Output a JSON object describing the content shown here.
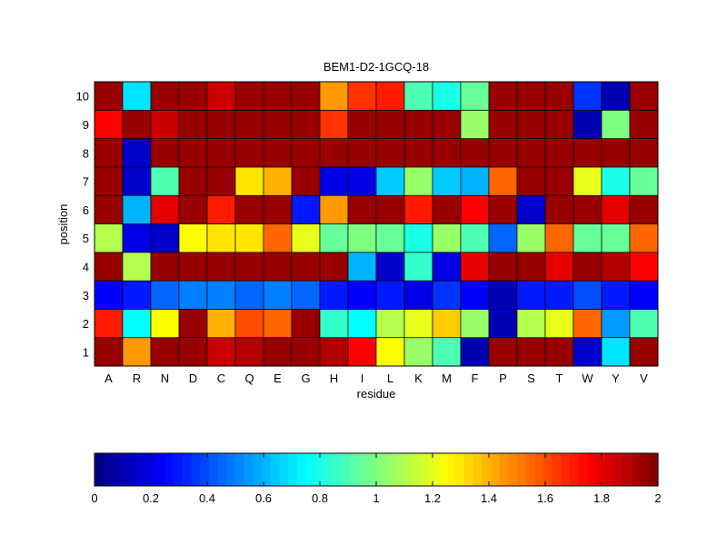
{
  "chart_data": [
    {
      "type": "heatmap",
      "title": "BEM1-D2-1GCQ-18",
      "xlabel": "residue",
      "ylabel": "position",
      "x_categories": [
        "A",
        "R",
        "N",
        "D",
        "C",
        "Q",
        "E",
        "G",
        "H",
        "I",
        "L",
        "K",
        "M",
        "F",
        "P",
        "S",
        "T",
        "W",
        "Y",
        "V"
      ],
      "y_categories": [
        "1",
        "2",
        "3",
        "4",
        "5",
        "6",
        "7",
        "8",
        "9",
        "10"
      ],
      "value_range": [
        0,
        2
      ],
      "colormap": "jet",
      "grid": true,
      "values": [
        [
          1.95,
          1.45,
          1.95,
          1.95,
          1.85,
          1.9,
          1.95,
          1.95,
          1.9,
          1.75,
          1.25,
          1.05,
          0.9,
          0.1,
          1.95,
          1.95,
          1.95,
          0.15,
          0.7,
          1.95
        ],
        [
          1.7,
          0.75,
          1.25,
          1.95,
          1.4,
          1.6,
          1.55,
          1.95,
          0.85,
          0.75,
          1.1,
          1.2,
          1.35,
          1.05,
          0.1,
          1.1,
          1.2,
          1.55,
          0.55,
          0.9
        ],
        [
          0.25,
          0.3,
          0.45,
          0.5,
          0.5,
          0.45,
          0.5,
          0.45,
          0.3,
          0.25,
          0.3,
          0.2,
          0.35,
          0.25,
          0.1,
          0.3,
          0.3,
          0.4,
          0.3,
          0.25
        ],
        [
          1.95,
          1.1,
          1.95,
          1.95,
          1.95,
          1.95,
          1.95,
          1.95,
          1.95,
          0.6,
          0.15,
          0.85,
          0.2,
          1.8,
          1.95,
          1.95,
          1.8,
          1.95,
          1.9,
          1.75
        ],
        [
          1.1,
          0.2,
          0.15,
          1.25,
          1.3,
          1.3,
          1.55,
          1.2,
          0.95,
          1.0,
          0.95,
          0.8,
          1.05,
          0.9,
          0.45,
          1.05,
          1.55,
          0.95,
          0.95,
          1.55
        ],
        [
          1.95,
          0.6,
          1.8,
          1.95,
          1.7,
          1.95,
          1.95,
          0.3,
          1.45,
          1.95,
          1.95,
          1.7,
          1.95,
          1.75,
          1.95,
          0.15,
          1.95,
          1.95,
          1.8,
          1.95
        ],
        [
          1.95,
          0.15,
          0.9,
          1.95,
          1.95,
          1.3,
          1.4,
          1.95,
          0.2,
          0.2,
          0.65,
          1.05,
          0.65,
          0.6,
          1.55,
          1.95,
          1.95,
          1.2,
          0.8,
          0.95
        ],
        [
          1.95,
          0.15,
          1.95,
          1.95,
          1.95,
          1.95,
          1.95,
          1.95,
          1.95,
          1.95,
          1.95,
          1.95,
          1.95,
          1.95,
          1.95,
          1.95,
          1.95,
          1.95,
          1.95,
          1.95
        ],
        [
          1.75,
          1.95,
          1.85,
          1.95,
          1.95,
          1.95,
          1.95,
          1.95,
          1.65,
          1.95,
          1.95,
          1.95,
          1.95,
          1.05,
          1.95,
          1.95,
          1.95,
          0.1,
          1.0,
          1.95
        ],
        [
          1.95,
          0.7,
          1.95,
          1.95,
          1.85,
          1.95,
          1.95,
          1.95,
          1.45,
          1.65,
          1.7,
          0.9,
          0.8,
          0.95,
          1.95,
          1.95,
          1.95,
          0.35,
          0.1,
          1.95
        ]
      ]
    },
    {
      "type": "colorbar",
      "range": [
        0,
        2
      ],
      "tick_labels": [
        "0",
        "0.2",
        "0.4",
        "0.6",
        "0.8",
        "1",
        "1.2",
        "1.4",
        "1.6",
        "1.8",
        "2"
      ],
      "tick_values": [
        0,
        0.2,
        0.4,
        0.6,
        0.8,
        1,
        1.2,
        1.4,
        1.6,
        1.8,
        2
      ]
    }
  ]
}
